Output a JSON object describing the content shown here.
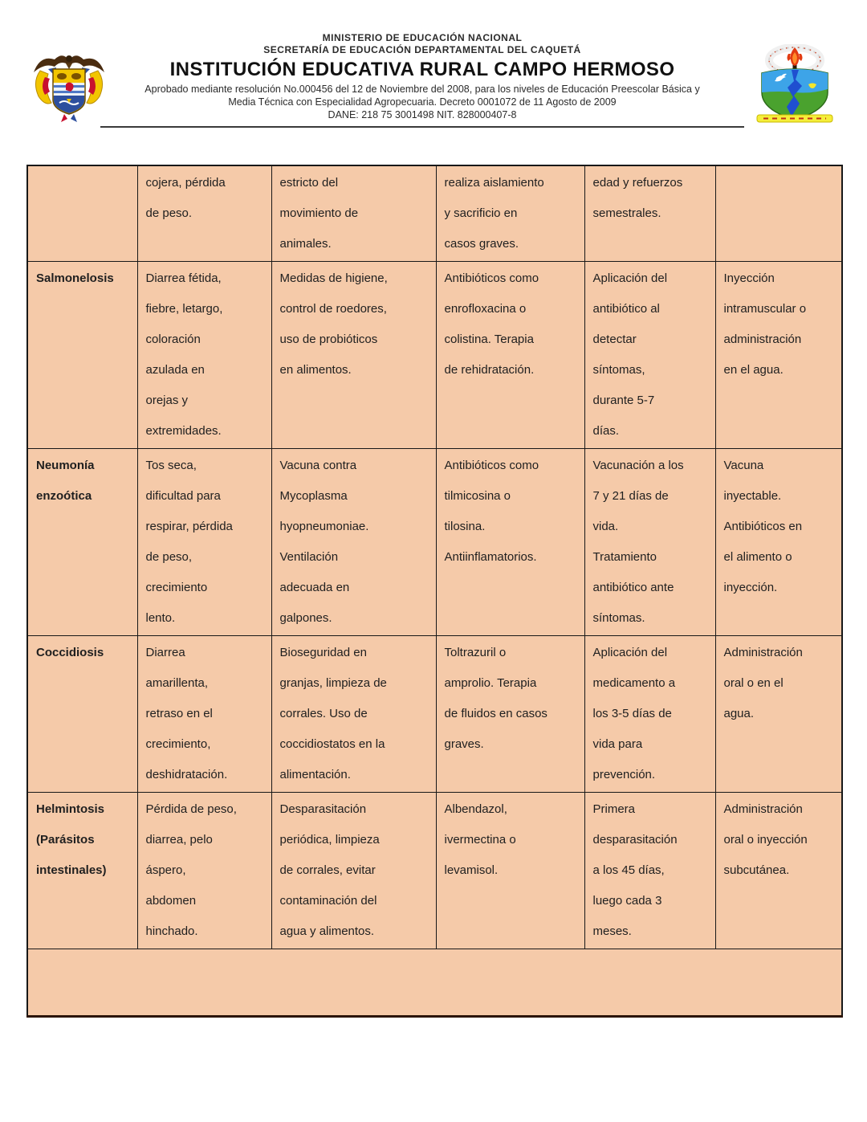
{
  "header": {
    "ministry": "MINISTERIO DE EDUCACIÓN NACIONAL",
    "secretary": "SECRETARÍA DE EDUCACIÓN DEPARTAMENTAL DEL CAQUETÁ",
    "institution": "INSTITUCIÓN EDUCATIVA RURAL CAMPO HERMOSO",
    "approval1": "Aprobado mediante resolución No.000456 del 12 de Noviembre  del 2008, para los niveles  de Educación Preescolar Básica y",
    "approval2": "Media Técnica con Especialidad Agropecuaria. Decreto 0001072 de 11 Agosto de 2009",
    "dane": "DANE: 218 75 3001498 NIT.  828000407-8",
    "left_logo": "colombia-coat-of-arms",
    "right_logo": "campo-hermoso-school-shield"
  },
  "table": {
    "cell_bg": "#f5caa9",
    "border_color": "#181818",
    "rows": [
      {
        "disease": "",
        "cells": [
          "cojera, pérdida\nde peso.",
          "estricto del\nmovimiento de\nanimales.",
          "realiza aislamiento\ny sacrificio en\ncasos graves.",
          "edad y refuerzos\nsemestrales.",
          ""
        ]
      },
      {
        "disease": "Salmonelosis",
        "cells": [
          "Diarrea fétida,\nfiebre, letargo,\ncoloración\nazulada en\norejas y\nextremidades.",
          "Medidas de higiene,\ncontrol de roedores,\nuso de probióticos\nen alimentos.",
          "Antibióticos como\nenrofloxacina o\ncolistina. Terapia\nde rehidratación.",
          "Aplicación del\nantibiótico al\ndetectar\nsíntomas,\ndurante 5-7\ndías.",
          "Inyección\nintramuscular o\nadministración\nen el agua."
        ]
      },
      {
        "disease": "Neumonía\nenzoótica",
        "cells": [
          "Tos seca,\ndificultad para\nrespirar, pérdida\nde peso,\ncrecimiento\nlento.",
          "Vacuna contra\nMycoplasma\nhyopneumoniae.\nVentilación\nadecuada en\ngalpones.",
          "Antibióticos como\ntilmicosina o\ntilosina.\nAntiinflamatorios.",
          "Vacunación a los\n7 y 21 días de\nvida.\nTratamiento\nantibiótico ante\nsíntomas.",
          "Vacuna\ninyectable.\nAntibióticos en\nel alimento o\ninyección."
        ]
      },
      {
        "disease": "Coccidiosis",
        "cells": [
          "Diarrea\namarillenta,\nretraso en el\ncrecimiento,\ndeshidratación.",
          "Bioseguridad en\ngranjas, limpieza de\ncorrales. Uso de\ncoccidiostatos en la\nalimentación.",
          "Toltrazuril o\namprolio. Terapia\nde fluidos en casos\ngraves.",
          "Aplicación del\nmedicamento a\nlos 3-5 días de\nvida para\nprevención.",
          "Administración\noral o en el\nagua."
        ]
      },
      {
        "disease": "Helmintosis\n(Parásitos\nintestinales)",
        "cells": [
          "Pérdida de peso,\ndiarrea, pelo\náspero,\nabdomen\nhinchado.",
          "Desparasitación\nperiódica, limpieza\nde corrales, evitar\ncontaminación del\nagua y alimentos.",
          "Albendazol,\nivermectina o\nlevamisol.",
          "Primera\ndesparasitación\na los 45 días,\nluego cada 3\nmeses.",
          "Administración\noral o inyección\nsubcutánea."
        ]
      }
    ]
  }
}
